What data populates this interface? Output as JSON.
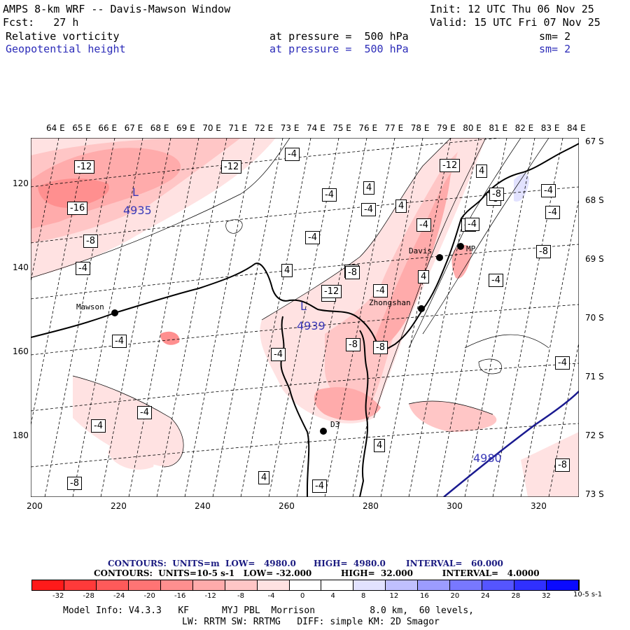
{
  "header": {
    "line1_left": "AMPS 8-km WRF -- Davis-Mawson Window",
    "line1_right": "Init: 12 UTC Thu 06 Nov 25",
    "line2_left": "Fcst:   27 h",
    "line2_right": "Valid: 15 UTC Fri 07 Nov 25",
    "field1_name": "Relative vorticity",
    "field1_level": "at pressure =  500 hPa",
    "field1_sm": "sm= 2",
    "field2_name": "Geopotential height",
    "field2_level": "at pressure =  500 hPa",
    "field2_sm": "sm= 2"
  },
  "lon_labels": [
    "64 E",
    "65 E",
    "66 E",
    "67 E",
    "68 E",
    "69 E",
    "70 E",
    "71 E",
    "72 E",
    "73 E",
    "74 E",
    "75 E",
    "76 E",
    "77 E",
    "78 E",
    "79 E",
    "80 E",
    "81 E",
    "82 E",
    "83 E",
    "84 E"
  ],
  "lat_labels": [
    "67 S",
    "68 S",
    "69 S",
    "70 S",
    "71 S",
    "72 S",
    "73 S"
  ],
  "x_ticks": [
    "200",
    "220",
    "240",
    "260",
    "280",
    "300",
    "320"
  ],
  "y_ticks": [
    "120",
    "140",
    "160",
    "180"
  ],
  "stations": [
    {
      "name": "Mawson"
    },
    {
      "name": "Davis"
    },
    {
      "name": "Zhongshan"
    },
    {
      "name": "D3"
    },
    {
      "name": "MP"
    }
  ],
  "height_labels": [
    "L",
    "4935",
    "L",
    "4939",
    "4980"
  ],
  "vort_labels": [
    "-12",
    "-12",
    "-4",
    "-4",
    "4",
    "-4",
    "4",
    "-12",
    "4",
    "-8",
    "-8",
    "-16",
    "-8",
    "-4",
    "4",
    "-8",
    "-4",
    "-4",
    "-8",
    "-12",
    "-4",
    "4",
    "-4",
    "-8",
    "-4",
    "-8",
    "-4",
    "-4",
    "-4",
    "-4",
    "-4",
    "-8",
    "-8",
    "-4",
    "4",
    "-4",
    "4",
    "-4",
    "-8",
    "-4",
    "-8"
  ],
  "contour_line1": "CONTOURS:  UNITS=m  LOW=   4980.0      HIGH=  4980.0       INTERVAL=   60.000",
  "contour_line2": "CONTOURS:  UNITS=10-5 s-1   LOW= -32.000          HIGH=  32.000          INTERVAL=   4.0000",
  "colorbar": {
    "labels": [
      "-32",
      "-28",
      "-24",
      "-20",
      "-16",
      "-12",
      "-8",
      "-4",
      "0",
      "4",
      "8",
      "12",
      "16",
      "20",
      "24",
      "28",
      "32"
    ],
    "unit": "10-5 s-1",
    "colors": [
      "#ff1a1a",
      "#ff3a3a",
      "#ff5a5a",
      "#ff7474",
      "#ff8f8f",
      "#ffabab",
      "#ffc6c6",
      "#ffe2e2",
      "#ffffff",
      "#ffffff",
      "#e2e2ff",
      "#c0c0ff",
      "#9c9cff",
      "#7878ff",
      "#5555ff",
      "#3030ff",
      "#0a0aff"
    ]
  },
  "footer": {
    "line1": "Model Info: V4.3.3   KF      MYJ PBL  Morrison          8.0 km,  60 levels,",
    "line2": "LW: RRTM SW: RRTMG   DIFF: simple KM: 2D Smagor"
  }
}
